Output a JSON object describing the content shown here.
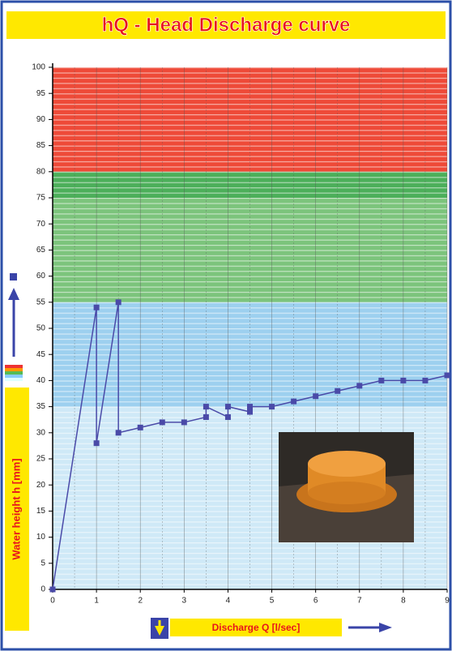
{
  "chart_data": {
    "type": "line",
    "title": "hQ - Head Discharge curve",
    "x_label": "Discharge Q [l/sec]",
    "y_label": "Water height h [mm]",
    "x": [
      0,
      1,
      1,
      1.5,
      1.5,
      2,
      2.5,
      3,
      3.5,
      3.5,
      4,
      4,
      4.5,
      4.5,
      5,
      5.5,
      6,
      6.5,
      7,
      7.5,
      8,
      8.5,
      9
    ],
    "series": [
      {
        "color": "#4a4aa8",
        "values": [
          0,
          54,
          28,
          55,
          30,
          31,
          32,
          32,
          33,
          35,
          33,
          35,
          34,
          35,
          35,
          36,
          37,
          38,
          39,
          40,
          40,
          40,
          41
        ]
      }
    ],
    "bands": [
      {
        "from": 80,
        "to": 100,
        "color": "#ee4a38"
      },
      {
        "from": 75,
        "to": 80,
        "color": "#4caf5a"
      },
      {
        "from": 55,
        "to": 75,
        "color": "#7cc47c"
      },
      {
        "from": 35,
        "to": 55,
        "color": "#9dd0ef"
      },
      {
        "from": 0,
        "to": 35,
        "color": "#cfe9f7"
      }
    ],
    "xlim": [
      0,
      9
    ],
    "xticks": [
      0,
      1,
      2,
      3,
      4,
      5,
      6,
      7,
      8,
      9
    ],
    "ylim": [
      0,
      100
    ],
    "yticks": [
      0,
      5,
      10,
      15,
      20,
      25,
      30,
      35,
      40,
      45,
      50,
      55,
      60,
      65,
      70,
      75,
      80,
      85,
      90,
      95,
      100
    ],
    "grid": true
  }
}
